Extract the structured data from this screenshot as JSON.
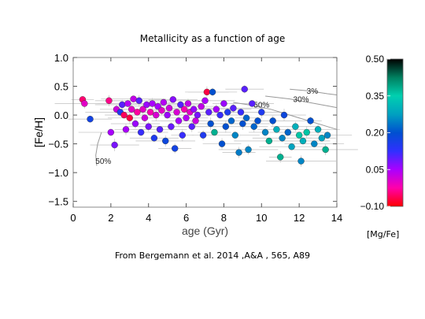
{
  "chart_data": {
    "type": "scatter",
    "title": "Metallicity as a function of age",
    "xlabel": "age (Gyr)",
    "ylabel": "[Fe/H]",
    "xlim": [
      0,
      14
    ],
    "ylim": [
      -1.6,
      1.0
    ],
    "xticks": [
      "0",
      "2",
      "4",
      "6",
      "8",
      "10",
      "12",
      "14"
    ],
    "yticks": [
      "1.0",
      "0.5",
      "0.0",
      "−0.5",
      "−1.0",
      "−1.5"
    ],
    "grid": false,
    "colorbar": {
      "label": "[Mg/Fe]",
      "range": [
        -0.1,
        0.5
      ],
      "ticks": [
        "0.50",
        "0.35",
        "0.20",
        "0.05",
        "−0.10"
      ],
      "stops": [
        "#ff0000",
        "#ff00aa",
        "#aa00ff",
        "#3030ff",
        "#0050d0",
        "#00a0c0",
        "#00d0b0",
        "#008060",
        "#000000"
      ]
    },
    "contours": [
      {
        "label": "3%",
        "label_at": [
          12.7,
          0.37
        ],
        "x": [
          11.5,
          12.5,
          13.5,
          14.0
        ],
        "y": [
          0.45,
          0.42,
          0.37,
          0.35
        ]
      },
      {
        "label": "30%",
        "label_at": [
          12.1,
          0.23
        ],
        "x": [
          10.2,
          11.5,
          12.5,
          13.5,
          14.0
        ],
        "y": [
          0.33,
          0.28,
          0.22,
          0.16,
          0.13
        ]
      },
      {
        "label": "50%",
        "label_at": [
          10.0,
          0.13
        ],
        "x": [
          8.5,
          9.5,
          10.5,
          11.5,
          12.5,
          13.5,
          14.0
        ],
        "y": [
          0.22,
          0.17,
          0.1,
          0.0,
          -0.1,
          -0.2,
          -0.25
        ]
      },
      {
        "label": "50%",
        "label_at": [
          1.6,
          -0.85
        ],
        "x": [
          1.5,
          1.3,
          1.2,
          1.25
        ],
        "y": [
          -0.3,
          -0.5,
          -0.7,
          -0.88
        ]
      }
    ],
    "points": [
      {
        "x": 0.5,
        "y": 0.27,
        "c": -0.05
      },
      {
        "x": 0.6,
        "y": 0.2,
        "c": 0.0
      },
      {
        "x": 0.9,
        "y": -0.07,
        "c": 0.17
      },
      {
        "x": 1.9,
        "y": 0.25,
        "c": -0.04
      },
      {
        "x": 2.0,
        "y": -0.3,
        "c": 0.05
      },
      {
        "x": 2.2,
        "y": -0.52,
        "c": 0.08
      },
      {
        "x": 2.3,
        "y": 0.1,
        "c": 0.02
      },
      {
        "x": 2.5,
        "y": 0.05,
        "c": 0.15
      },
      {
        "x": 2.6,
        "y": 0.18,
        "c": 0.1
      },
      {
        "x": 2.7,
        "y": 0.0,
        "c": -0.06
      },
      {
        "x": 2.8,
        "y": -0.25,
        "c": 0.05
      },
      {
        "x": 2.9,
        "y": 0.2,
        "c": 0.04
      },
      {
        "x": 3.0,
        "y": -0.05,
        "c": -0.07
      },
      {
        "x": 3.1,
        "y": 0.1,
        "c": 0.0
      },
      {
        "x": 3.2,
        "y": 0.28,
        "c": 0.03
      },
      {
        "x": 3.3,
        "y": -0.15,
        "c": 0.06
      },
      {
        "x": 3.4,
        "y": 0.05,
        "c": -0.03
      },
      {
        "x": 3.5,
        "y": 0.25,
        "c": 0.1
      },
      {
        "x": 3.6,
        "y": -0.3,
        "c": 0.12
      },
      {
        "x": 3.7,
        "y": 0.1,
        "c": 0.0
      },
      {
        "x": 3.8,
        "y": -0.05,
        "c": 0.02
      },
      {
        "x": 3.9,
        "y": 0.18,
        "c": 0.06
      },
      {
        "x": 4.0,
        "y": -0.2,
        "c": 0.08
      },
      {
        "x": 4.1,
        "y": 0.05,
        "c": -0.02
      },
      {
        "x": 4.2,
        "y": 0.2,
        "c": 0.05
      },
      {
        "x": 4.3,
        "y": -0.4,
        "c": 0.15
      },
      {
        "x": 4.4,
        "y": 0.0,
        "c": 0.01
      },
      {
        "x": 4.5,
        "y": 0.15,
        "c": 0.05
      },
      {
        "x": 4.6,
        "y": -0.25,
        "c": 0.1
      },
      {
        "x": 4.7,
        "y": 0.08,
        "c": 0.0
      },
      {
        "x": 4.8,
        "y": 0.22,
        "c": 0.04
      },
      {
        "x": 4.9,
        "y": -0.45,
        "c": 0.18
      },
      {
        "x": 5.0,
        "y": 0.0,
        "c": 0.06
      },
      {
        "x": 5.1,
        "y": 0.12,
        "c": 0.02
      },
      {
        "x": 5.2,
        "y": -0.2,
        "c": 0.09
      },
      {
        "x": 5.3,
        "y": 0.27,
        "c": 0.07
      },
      {
        "x": 5.4,
        "y": -0.58,
        "c": 0.17
      },
      {
        "x": 5.5,
        "y": 0.05,
        "c": 0.01
      },
      {
        "x": 5.6,
        "y": -0.1,
        "c": 0.05
      },
      {
        "x": 5.7,
        "y": 0.18,
        "c": 0.1
      },
      {
        "x": 5.8,
        "y": -0.35,
        "c": 0.12
      },
      {
        "x": 5.9,
        "y": 0.1,
        "c": -0.02
      },
      {
        "x": 6.0,
        "y": -0.05,
        "c": 0.04
      },
      {
        "x": 6.1,
        "y": 0.2,
        "c": 0.03
      },
      {
        "x": 6.2,
        "y": 0.05,
        "c": 0.0
      },
      {
        "x": 6.3,
        "y": -0.2,
        "c": 0.1
      },
      {
        "x": 6.4,
        "y": 0.1,
        "c": 0.06
      },
      {
        "x": 6.5,
        "y": -0.1,
        "c": 0.02
      },
      {
        "x": 6.6,
        "y": 0.0,
        "c": 0.08
      },
      {
        "x": 6.8,
        "y": 0.15,
        "c": 0.03
      },
      {
        "x": 6.9,
        "y": -0.35,
        "c": 0.15
      },
      {
        "x": 7.0,
        "y": 0.25,
        "c": 0.05
      },
      {
        "x": 7.1,
        "y": 0.4,
        "c": -0.07
      },
      {
        "x": 7.2,
        "y": 0.05,
        "c": 0.1
      },
      {
        "x": 7.3,
        "y": -0.15,
        "c": 0.2
      },
      {
        "x": 7.4,
        "y": 0.4,
        "c": 0.2
      },
      {
        "x": 7.5,
        "y": -0.3,
        "c": 0.38
      },
      {
        "x": 7.6,
        "y": 0.1,
        "c": 0.05
      },
      {
        "x": 7.8,
        "y": 0.0,
        "c": 0.12
      },
      {
        "x": 7.9,
        "y": -0.5,
        "c": 0.2
      },
      {
        "x": 8.0,
        "y": 0.2,
        "c": 0.06
      },
      {
        "x": 8.1,
        "y": -0.2,
        "c": 0.2
      },
      {
        "x": 8.2,
        "y": 0.05,
        "c": 0.15
      },
      {
        "x": 8.4,
        "y": -0.1,
        "c": 0.22
      },
      {
        "x": 8.5,
        "y": 0.12,
        "c": 0.1
      },
      {
        "x": 8.6,
        "y": -0.35,
        "c": 0.25
      },
      {
        "x": 8.8,
        "y": -0.65,
        "c": 0.24
      },
      {
        "x": 8.9,
        "y": 0.05,
        "c": 0.12
      },
      {
        "x": 9.0,
        "y": -0.15,
        "c": 0.2
      },
      {
        "x": 9.1,
        "y": 0.45,
        "c": 0.1
      },
      {
        "x": 9.2,
        "y": -0.05,
        "c": 0.22
      },
      {
        "x": 9.3,
        "y": -0.6,
        "c": 0.25
      },
      {
        "x": 9.5,
        "y": 0.2,
        "c": 0.1
      },
      {
        "x": 9.6,
        "y": -0.2,
        "c": 0.22
      },
      {
        "x": 9.8,
        "y": -0.1,
        "c": 0.2
      },
      {
        "x": 10.0,
        "y": 0.05,
        "c": 0.15
      },
      {
        "x": 10.2,
        "y": -0.3,
        "c": 0.25
      },
      {
        "x": 10.4,
        "y": -0.45,
        "c": 0.38
      },
      {
        "x": 10.6,
        "y": -0.1,
        "c": 0.2
      },
      {
        "x": 10.8,
        "y": -0.25,
        "c": 0.3
      },
      {
        "x": 11.0,
        "y": -0.73,
        "c": 0.38
      },
      {
        "x": 11.1,
        "y": -0.4,
        "c": 0.25
      },
      {
        "x": 11.2,
        "y": 0.0,
        "c": 0.18
      },
      {
        "x": 11.4,
        "y": -0.3,
        "c": 0.22
      },
      {
        "x": 11.6,
        "y": -0.55,
        "c": 0.28
      },
      {
        "x": 11.8,
        "y": -0.2,
        "c": 0.3
      },
      {
        "x": 12.0,
        "y": -0.35,
        "c": 0.36
      },
      {
        "x": 12.1,
        "y": -0.8,
        "c": 0.25
      },
      {
        "x": 12.2,
        "y": -0.45,
        "c": 0.3
      },
      {
        "x": 12.4,
        "y": -0.3,
        "c": 0.36
      },
      {
        "x": 12.6,
        "y": -0.1,
        "c": 0.2
      },
      {
        "x": 12.8,
        "y": -0.5,
        "c": 0.25
      },
      {
        "x": 13.0,
        "y": -0.25,
        "c": 0.3
      },
      {
        "x": 13.2,
        "y": -0.4,
        "c": 0.28
      },
      {
        "x": 13.4,
        "y": -0.6,
        "c": 0.38
      },
      {
        "x": 13.5,
        "y": -0.35,
        "c": 0.25
      }
    ]
  },
  "caption": "From Bergemann et al. 2014 ,A&A , 565, A89"
}
